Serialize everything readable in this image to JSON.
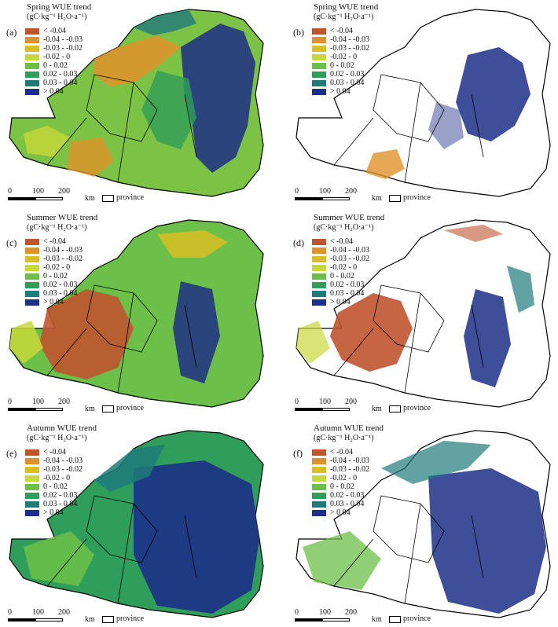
{
  "legend": {
    "colors": [
      "#c0542f",
      "#e0922a",
      "#d8be24",
      "#c8d83a",
      "#6cbf48",
      "#2f9e5a",
      "#1f7a7a",
      "#1d2f86"
    ],
    "labels": [
      "< -0.04",
      "-0.04 - -0.03",
      "-0.03 - -0.02",
      "-0.02 - 0",
      "0 - 0.02",
      "0.02 - 0.03",
      "0.03 - 0.04",
      "> 0.04"
    ]
  },
  "unit": "(gC·kg⁻¹ H₂O·a⁻¹)",
  "scalebar": {
    "ticks": [
      "0",
      "100",
      "200"
    ],
    "unit": "km",
    "province_label": "province"
  },
  "panels": [
    {
      "letter": "(a)",
      "title": "Spring WUE trend",
      "dominant": "all-classes-green-yellow, orange north-west, blue east"
    },
    {
      "letter": "(b)",
      "title": "Spring WUE trend",
      "dominant": "mostly blank, blue east-centre, orange south-west"
    },
    {
      "letter": "(c)",
      "title": "Summer WUE trend",
      "dominant": "red-orange west, green/blue east"
    },
    {
      "letter": "(d)",
      "title": "Summer WUE trend",
      "dominant": "red west, blue east, sparse"
    },
    {
      "letter": "(e)",
      "title": "Autumn WUE trend",
      "dominant": "teal/green north-west, dark blue east"
    },
    {
      "letter": "(f)",
      "title": "Autumn WUE trend",
      "dominant": "dark blue east, green/teal spread"
    }
  ]
}
